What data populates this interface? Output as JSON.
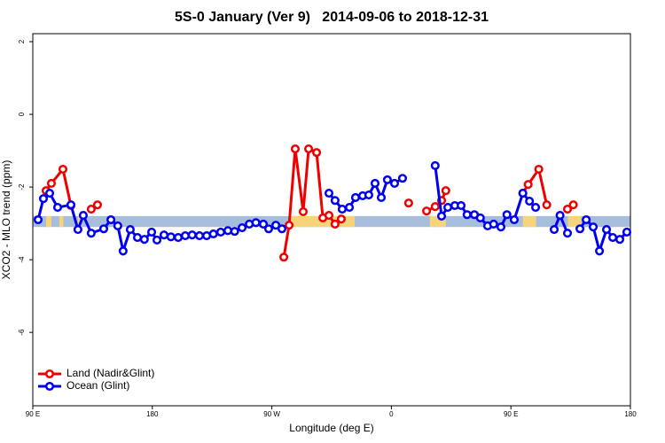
{
  "chart_data": {
    "type": "line",
    "title": "5S-0 January (Ver 9)   2014-09-06 to 2018-12-31",
    "x_label": "Longitude (deg E)",
    "y_label": "XCO2 - MLO trend (ppm)",
    "xlim": [
      90,
      540
    ],
    "ylim": [
      -8.02,
      2.22
    ],
    "xticks": [
      {
        "value": 90,
        "label": "90 E"
      },
      180,
      {
        "value": 270,
        "label": "90 W"
      },
      {
        "value": 360,
        "label": "0"
      },
      {
        "value": 450,
        "label": "90 E"
      },
      {
        "value": 540,
        "label": "180"
      }
    ],
    "yticks": [
      2,
      0,
      -2,
      -4,
      -6
    ],
    "band": {
      "ylim": [
        -3.1,
        -2.8
      ],
      "color": "#a6bddb",
      "land_color": "#f6d57a",
      "land": [
        [
          100,
          104
        ],
        [
          110,
          113
        ],
        [
          124,
          127
        ],
        [
          283.6,
          332.4
        ],
        [
          389,
          401
        ],
        [
          459,
          469
        ],
        [
          493,
          503
        ]
      ]
    },
    "legend": "bottom-left",
    "series": [
      {
        "name": "Land (Nadir&Glint)",
        "color": "#ee0000",
        "x": [
          100,
          104,
          112.7,
          118.7,
          126,
          134,
          138.7,
          275,
          279,
          283,
          287.6,
          293.6,
          297.7,
          303.7,
          308.4,
          313,
          317.6,
          322.3,
          368,
          373,
          380,
          386.5,
          393,
          397.8,
          401,
          455,
          459,
          463,
          471,
          477,
          485,
          492.6,
          497
        ],
        "values": [
          -2.1,
          -1.9,
          -1.51,
          -2.51,
          null,
          -2.61,
          -2.49,
          null,
          -3.93,
          -3.05,
          -0.95,
          -2.68,
          -0.95,
          -1.05,
          -2.85,
          -2.78,
          -3.02,
          -2.88,
          null,
          -2.44,
          null,
          -2.66,
          -2.54,
          -2.37,
          -2.1,
          null,
          -2.17,
          -1.93,
          -1.51,
          -2.49,
          null,
          -2.61,
          -2.49
        ]
      },
      {
        "name": "Ocean (Glint)",
        "color": "#0000ee",
        "x": [
          94,
          98,
          102.7,
          108.7,
          118.7,
          124,
          128,
          134,
          143.4,
          148.8,
          154,
          158,
          163.4,
          168.8,
          174,
          179.5,
          183.5,
          188.8,
          194,
          199.5,
          204.8,
          210,
          215.5,
          220.9,
          226,
          231.5,
          236.9,
          242,
          247.6,
          253,
          258,
          263.6,
          267.6,
          273,
          277.6,
          295,
          313,
          317.6,
          323,
          328.4,
          333,
          338.4,
          343,
          347.7,
          352.4,
          357,
          362.4,
          368.4,
          380,
          393,
          397.8,
          402.5,
          407.8,
          412.5,
          417,
          422.5,
          427,
          432.5,
          437,
          442.5,
          447,
          452.5,
          459,
          464,
          468.6,
          475,
          482.6,
          487,
          492.6,
          497,
          502,
          506.7,
          512,
          516.7,
          522,
          526.7,
          532,
          537.3
        ],
        "values": [
          -2.9,
          -2.32,
          -2.17,
          -2.56,
          -2.49,
          -3.17,
          -2.78,
          -3.27,
          -3.15,
          -2.9,
          -3.07,
          -3.76,
          -3.17,
          -3.39,
          -3.44,
          -3.24,
          -3.46,
          -3.32,
          -3.37,
          -3.39,
          -3.34,
          -3.32,
          -3.34,
          -3.34,
          -3.29,
          -3.24,
          -3.2,
          -3.22,
          -3.12,
          -3.02,
          -2.98,
          -3.02,
          -3.15,
          -3.05,
          -3.15,
          null,
          -2.17,
          -2.37,
          -2.61,
          -2.56,
          -2.29,
          -2.24,
          -2.22,
          -1.9,
          -2.29,
          -1.8,
          -1.9,
          -1.76,
          null,
          -1.41,
          -2.8,
          -2.56,
          -2.51,
          -2.51,
          -2.76,
          -2.76,
          -2.85,
          -3.07,
          -3.02,
          -3.1,
          -2.76,
          -2.9,
          -2.17,
          -2.39,
          -2.56,
          null,
          -3.17,
          -2.78,
          -3.27,
          null,
          -3.15,
          -2.9,
          -3.1,
          -3.76,
          -3.17,
          -3.39,
          -3.44,
          -3.24
        ]
      }
    ]
  }
}
